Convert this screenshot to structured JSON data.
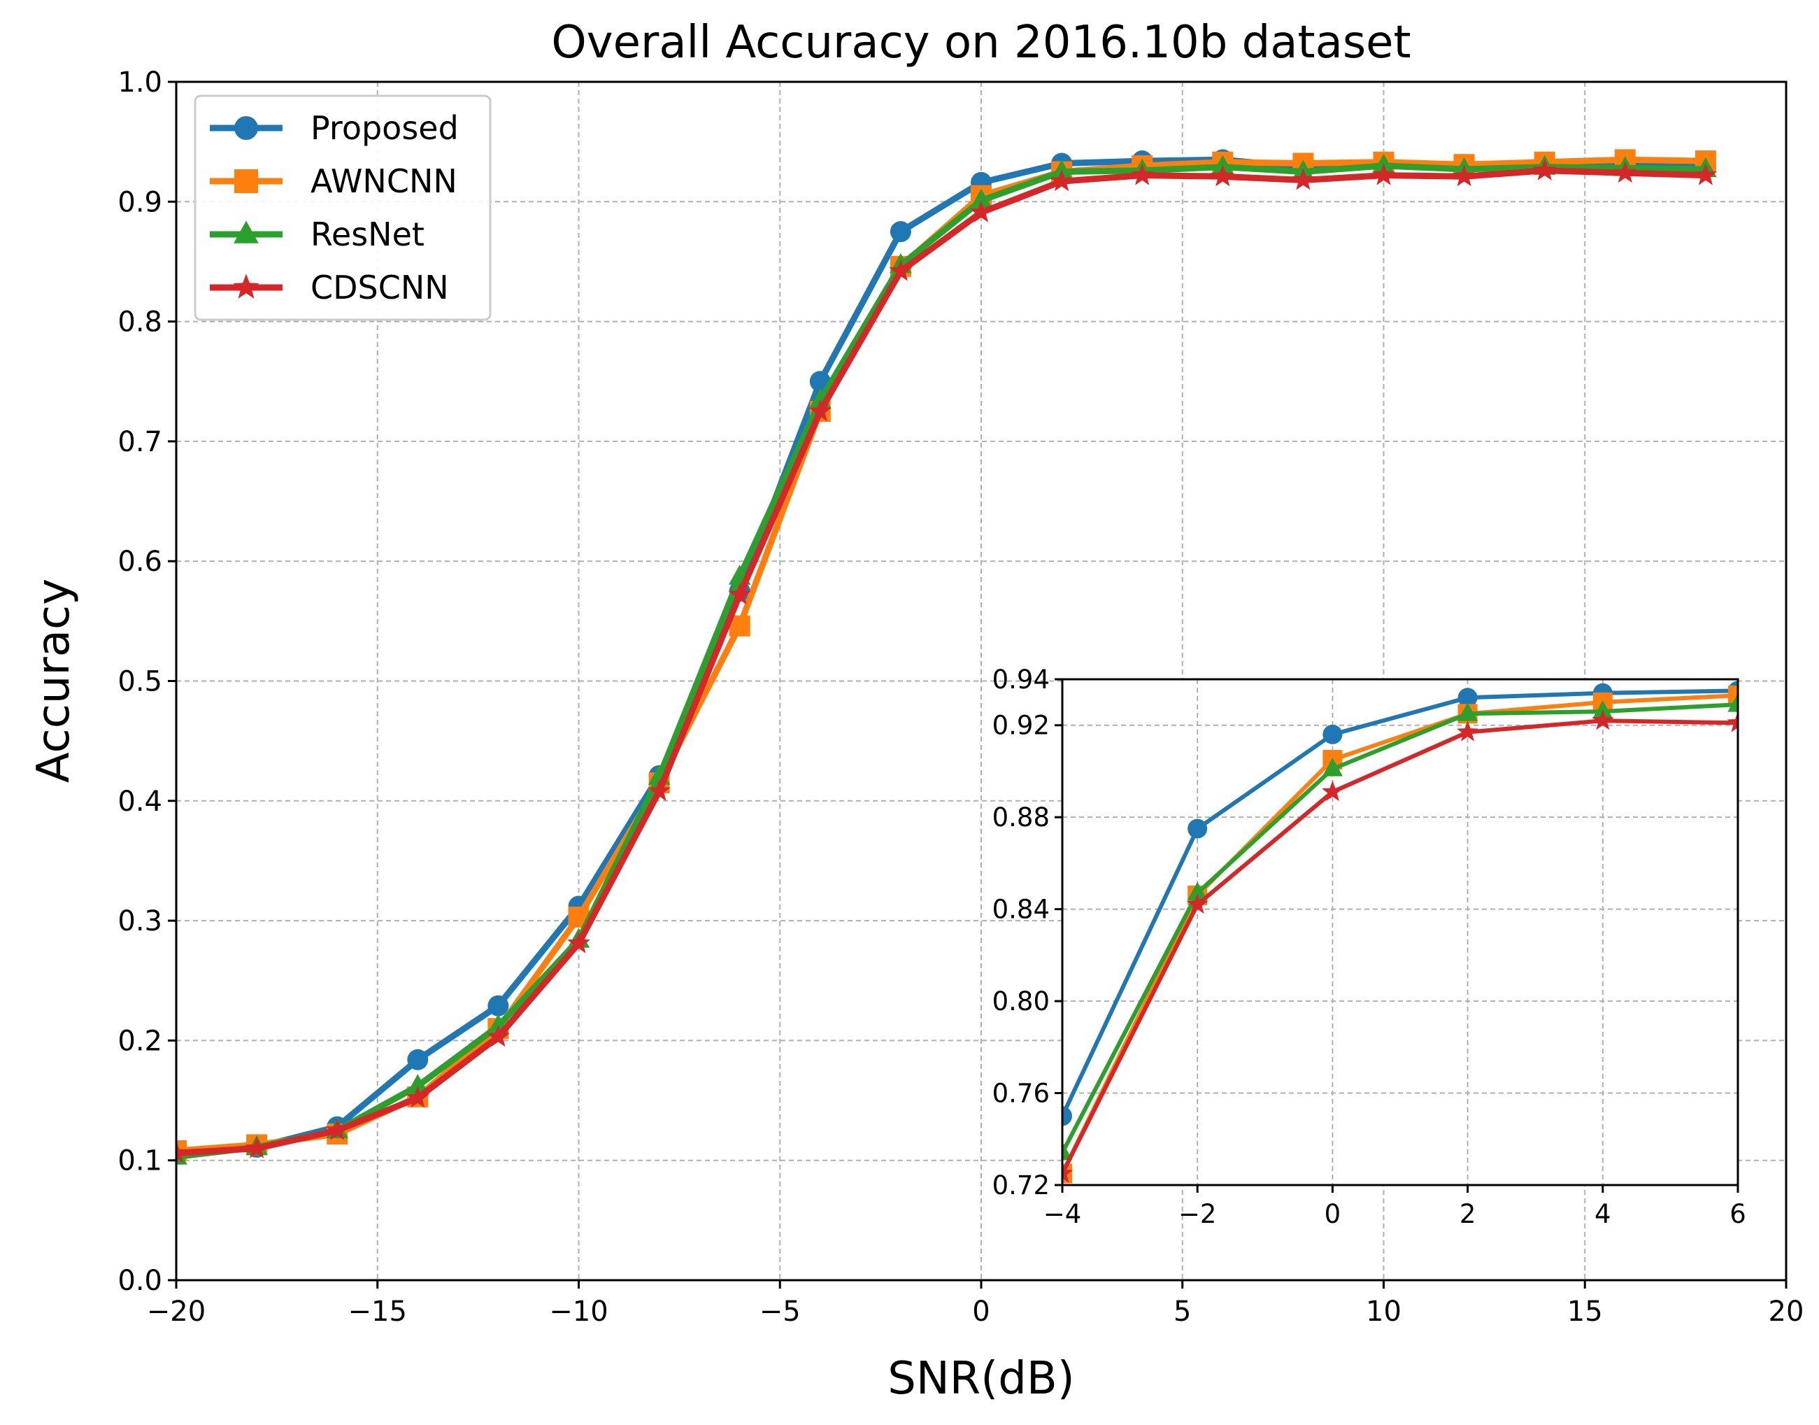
{
  "chart_data": {
    "type": "line",
    "title": "Overall Accuracy on 2016.10b dataset",
    "xlabel": "SNR(dB)",
    "ylabel": "Accuracy",
    "xlim": [
      -20,
      20
    ],
    "ylim": [
      0.0,
      1.0
    ],
    "grid": true,
    "legend_position": "top-left",
    "xticks": [
      -20,
      -15,
      -10,
      -5,
      0,
      5,
      10,
      15,
      20
    ],
    "xtick_labels": [
      "−20",
      "−15",
      "−10",
      "−5",
      "0",
      "5",
      "10",
      "15",
      "20"
    ],
    "yticks": [
      0.0,
      0.1,
      0.2,
      0.3,
      0.4,
      0.5,
      0.6,
      0.7,
      0.8,
      0.9,
      1.0
    ],
    "ytick_labels": [
      "0.0",
      "0.1",
      "0.2",
      "0.3",
      "0.4",
      "0.5",
      "0.6",
      "0.7",
      "0.8",
      "0.9",
      "1.0"
    ],
    "x": [
      -20,
      -18,
      -16,
      -14,
      -12,
      -10,
      -8,
      -6,
      -4,
      -2,
      0,
      2,
      4,
      6,
      8,
      10,
      12,
      14,
      16,
      18
    ],
    "series": [
      {
        "name": "Proposed",
        "color": "#1f77b4",
        "marker": "circle",
        "values": [
          0.107,
          0.111,
          0.128,
          0.184,
          0.229,
          0.312,
          0.421,
          0.575,
          0.75,
          0.875,
          0.916,
          0.932,
          0.934,
          0.935,
          0.929,
          0.931,
          0.929,
          0.931,
          0.93,
          0.929
        ]
      },
      {
        "name": "AWNCNN",
        "color": "#ff7f0e",
        "marker": "square",
        "values": [
          0.108,
          0.113,
          0.122,
          0.153,
          0.21,
          0.303,
          0.415,
          0.546,
          0.725,
          0.846,
          0.905,
          0.925,
          0.93,
          0.933,
          0.932,
          0.933,
          0.931,
          0.933,
          0.935,
          0.934
        ]
      },
      {
        "name": "ResNet",
        "color": "#2ca02c",
        "marker": "triangle",
        "values": [
          0.103,
          0.111,
          0.125,
          0.162,
          0.212,
          0.284,
          0.42,
          0.587,
          0.734,
          0.847,
          0.901,
          0.925,
          0.926,
          0.929,
          0.925,
          0.93,
          0.927,
          0.929,
          0.928,
          0.927
        ]
      },
      {
        "name": "CDSCNN",
        "color": "#d62728",
        "marker": "star",
        "values": [
          0.106,
          0.11,
          0.125,
          0.152,
          0.203,
          0.281,
          0.408,
          0.572,
          0.725,
          0.842,
          0.891,
          0.917,
          0.922,
          0.921,
          0.918,
          0.922,
          0.921,
          0.926,
          0.924,
          0.922
        ]
      }
    ],
    "inset": {
      "xlim": [
        -4,
        6
      ],
      "ylim": [
        0.72,
        0.94
      ],
      "xticks": [
        -4,
        -2,
        0,
        2,
        4,
        6
      ],
      "xtick_labels": [
        "−4",
        "−2",
        "0",
        "2",
        "4",
        "6"
      ],
      "yticks": [
        0.72,
        0.76,
        0.8,
        0.84,
        0.88,
        0.92,
        0.94
      ],
      "ytick_labels": [
        "0.72",
        "0.76",
        "0.80",
        "0.84",
        "0.88",
        "0.92",
        "0.94"
      ],
      "grid": true
    }
  }
}
